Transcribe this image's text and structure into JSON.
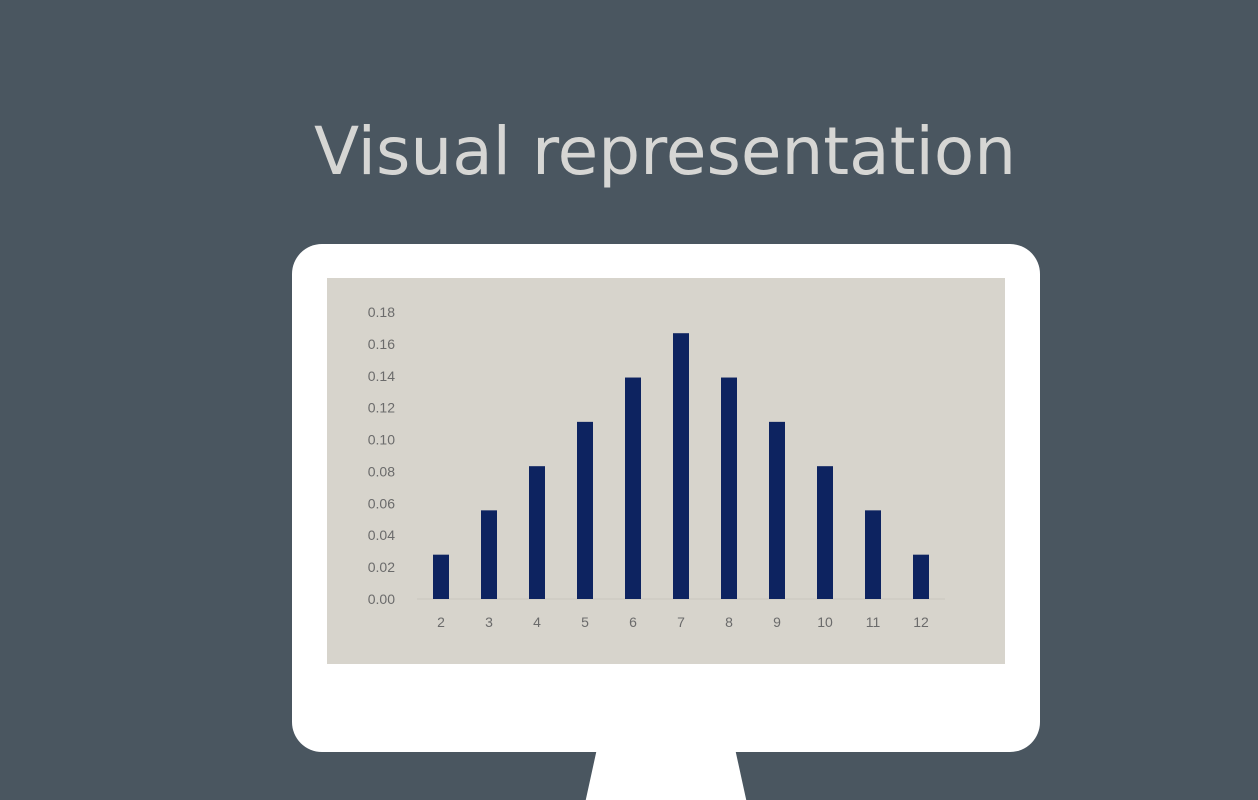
{
  "slide": {
    "title": "Visual representation",
    "background_color": "#4a5660",
    "monitor_color": "#ffffff",
    "screen_color": "#d7d4cc"
  },
  "chart_data": {
    "type": "bar",
    "categories": [
      "2",
      "3",
      "4",
      "5",
      "6",
      "7",
      "8",
      "9",
      "10",
      "11",
      "12"
    ],
    "values": [
      0.0278,
      0.0556,
      0.0833,
      0.1111,
      0.1389,
      0.1667,
      0.1389,
      0.1111,
      0.0833,
      0.0556,
      0.0278
    ],
    "ylim": [
      0,
      0.18
    ],
    "yticks": [
      "0.00",
      "0.02",
      "0.04",
      "0.06",
      "0.08",
      "0.10",
      "0.12",
      "0.14",
      "0.16",
      "0.18"
    ],
    "title": "",
    "xlabel": "",
    "ylabel": "",
    "grid": false,
    "legend": "none",
    "bar_color": "#0d2360"
  }
}
